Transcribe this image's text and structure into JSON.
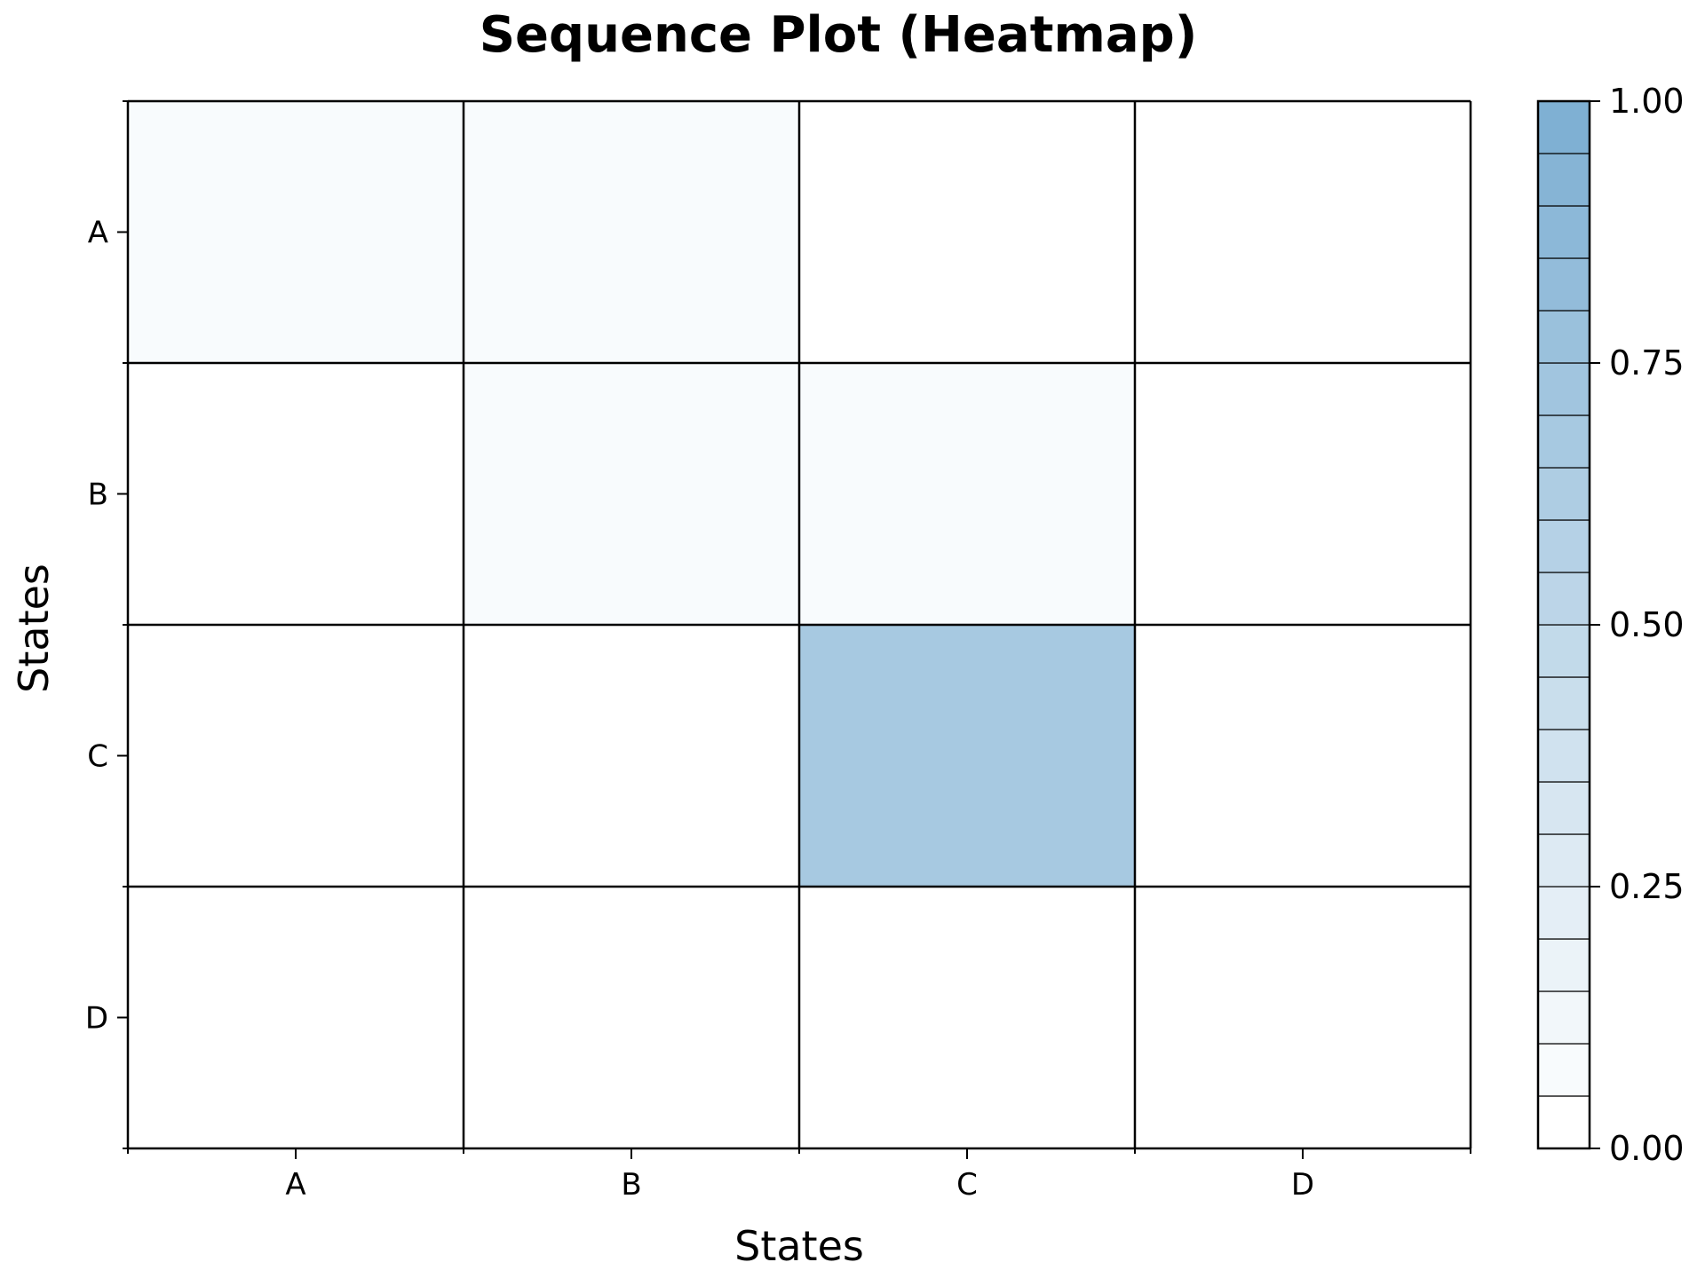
{
  "chart_data": {
    "type": "heatmap",
    "title": "Sequence Plot (Heatmap)",
    "xlabel": "States",
    "ylabel": "States",
    "x_categories": [
      "A",
      "B",
      "C",
      "D"
    ],
    "y_categories": [
      "A",
      "B",
      "C",
      "D"
    ],
    "values": [
      [
        0.05,
        0.05,
        0.0,
        0.0
      ],
      [
        0.0,
        0.05,
        0.05,
        0.0
      ],
      [
        0.0,
        0.0,
        0.65,
        0.0
      ],
      [
        0.0,
        0.0,
        0.0,
        0.0
      ]
    ],
    "colorbar": {
      "range": [
        0,
        1
      ],
      "ticks": [
        "0.00",
        "0.25",
        "0.50",
        "0.75",
        "1.00"
      ],
      "levels": 20,
      "color_min": "#ffffff",
      "color_max": "#7fb0d3"
    },
    "grid": true,
    "cell_border_color": "#000000"
  }
}
